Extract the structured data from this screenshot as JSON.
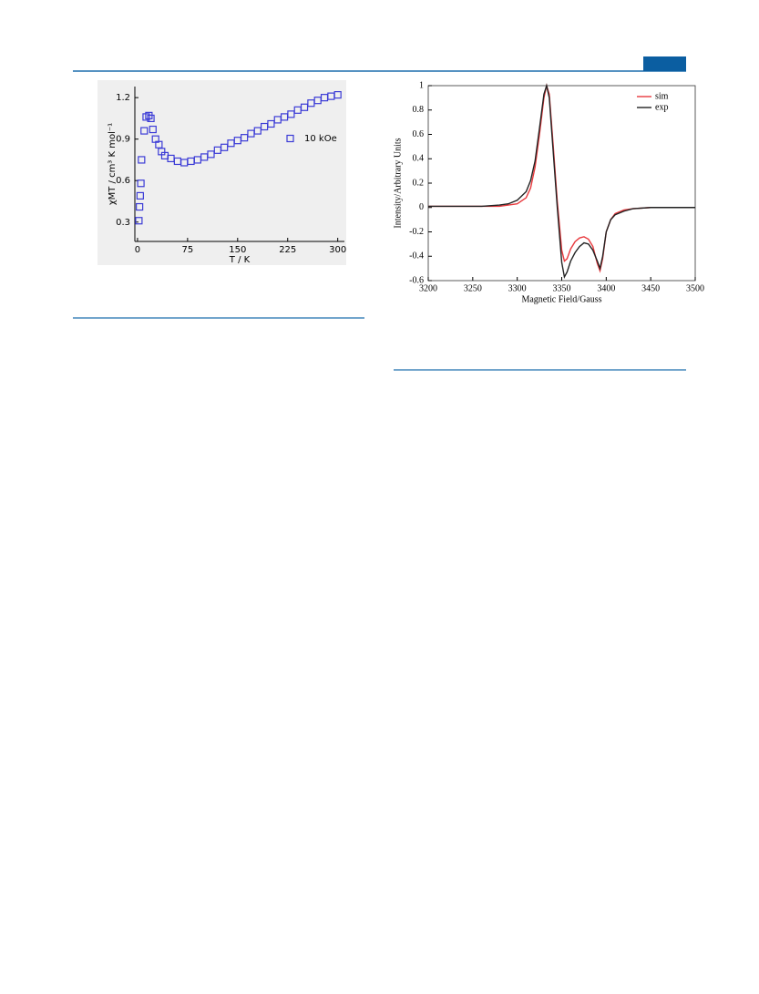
{
  "chart_data": [
    {
      "type": "scatter",
      "xlabel": "T / K",
      "ylabel": "χMT / cm³ K mol⁻¹",
      "xlim": [
        -4,
        310
      ],
      "ylim": [
        0.16,
        1.28
      ],
      "xticks": [
        0,
        75,
        150,
        225,
        300
      ],
      "yticks": [
        0.3,
        0.6,
        0.9,
        1.2
      ],
      "legend": "upper right",
      "marker": "square",
      "series": [
        {
          "name": "10 kOe",
          "color": "#3b3bd6",
          "x": [
            2,
            3,
            4,
            5,
            6,
            10,
            13,
            17,
            20,
            23,
            27,
            32,
            36,
            41,
            50,
            60,
            70,
            80,
            90,
            100,
            110,
            120,
            130,
            140,
            150,
            160,
            170,
            180,
            190,
            200,
            210,
            220,
            230,
            240,
            250,
            260,
            270,
            280,
            290,
            300
          ],
          "values": [
            0.31,
            0.41,
            0.49,
            0.58,
            0.75,
            0.96,
            1.06,
            1.07,
            1.05,
            0.97,
            0.9,
            0.86,
            0.81,
            0.78,
            0.76,
            0.74,
            0.73,
            0.74,
            0.75,
            0.77,
            0.79,
            0.82,
            0.84,
            0.87,
            0.89,
            0.91,
            0.94,
            0.96,
            0.99,
            1.01,
            1.04,
            1.06,
            1.08,
            1.11,
            1.13,
            1.16,
            1.18,
            1.2,
            1.21,
            1.22
          ]
        }
      ]
    },
    {
      "type": "line",
      "xlabel": "Magnetic Field/Gauss",
      "ylabel": "Intensity/Arbitrary Units",
      "xlim": [
        3200,
        3500
      ],
      "ylim": [
        -0.6,
        1
      ],
      "xticks": [
        3200,
        3250,
        3300,
        3350,
        3400,
        3450,
        3500
      ],
      "yticks": [
        -0.6,
        -0.4,
        -0.2,
        0,
        0.2,
        0.4,
        0.6,
        0.8,
        1
      ],
      "legend": "upper right",
      "x": [
        3200,
        3220,
        3240,
        3260,
        3280,
        3290,
        3300,
        3310,
        3315,
        3320,
        3325,
        3330,
        3333,
        3336,
        3340,
        3345,
        3350,
        3353,
        3356,
        3360,
        3365,
        3370,
        3375,
        3380,
        3385,
        3390,
        3393,
        3396,
        3400,
        3405,
        3410,
        3420,
        3430,
        3450,
        3475,
        3500
      ],
      "series": [
        {
          "name": "sim",
          "color": "#e8393d",
          "values": [
            0.01,
            0.01,
            0.01,
            0.01,
            0.01,
            0.02,
            0.03,
            0.08,
            0.16,
            0.33,
            0.6,
            0.9,
            1.0,
            0.93,
            0.55,
            0.05,
            -0.35,
            -0.44,
            -0.42,
            -0.34,
            -0.28,
            -0.25,
            -0.24,
            -0.26,
            -0.32,
            -0.46,
            -0.52,
            -0.42,
            -0.2,
            -0.1,
            -0.05,
            -0.02,
            -0.01,
            0,
            0,
            0
          ]
        },
        {
          "name": "exp",
          "color": "#222222",
          "values": [
            0.01,
            0.01,
            0.01,
            0.01,
            0.02,
            0.03,
            0.06,
            0.13,
            0.22,
            0.38,
            0.65,
            0.93,
            1.0,
            0.9,
            0.5,
            0.0,
            -0.45,
            -0.57,
            -0.53,
            -0.44,
            -0.37,
            -0.32,
            -0.29,
            -0.3,
            -0.35,
            -0.44,
            -0.5,
            -0.4,
            -0.2,
            -0.1,
            -0.06,
            -0.03,
            -0.01,
            0,
            0,
            0
          ]
        }
      ]
    }
  ]
}
